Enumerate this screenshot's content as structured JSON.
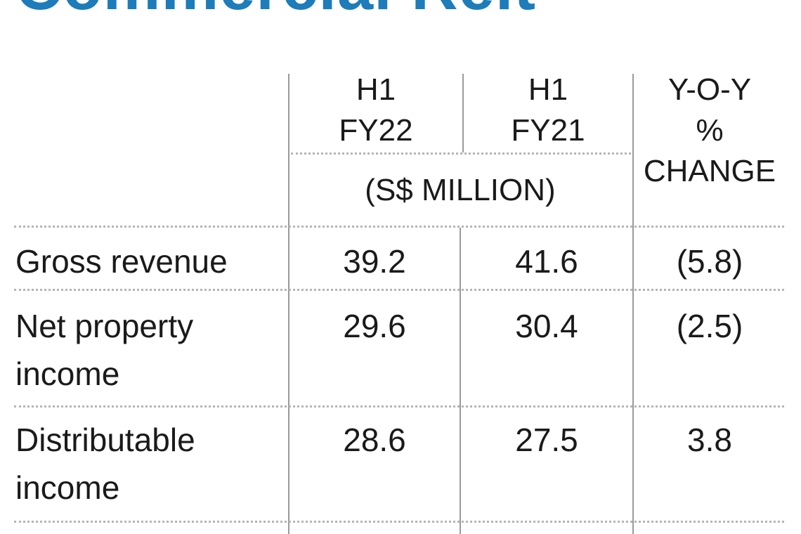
{
  "title": "Commercial Reit",
  "table": {
    "columns": [
      [
        "H1",
        "FY22"
      ],
      [
        "H1",
        "FY21"
      ],
      [
        "Y-O-Y",
        "%",
        "CHANGE"
      ]
    ],
    "unit": "(S$ MILLION)",
    "rows": [
      [
        "Gross revenue",
        "39.2",
        "41.6",
        "(5.8)"
      ],
      [
        "Net property income",
        "29.6",
        "30.4",
        "(2.5)"
      ],
      [
        "Distributable income",
        "28.6",
        "27.5",
        "3.8"
      ]
    ]
  }
}
